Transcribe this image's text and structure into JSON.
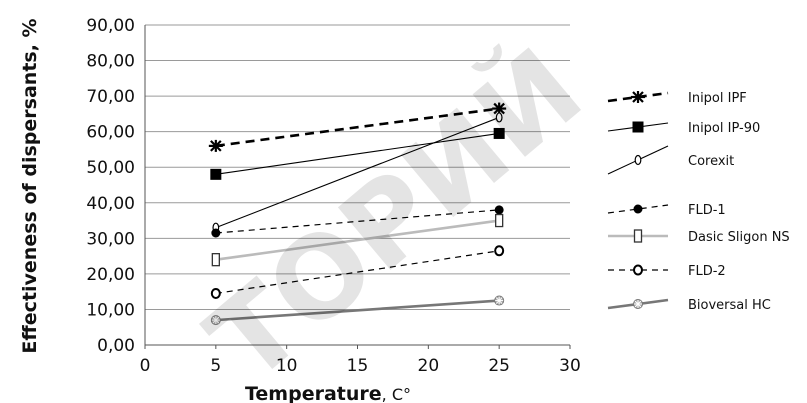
{
  "chart_data": {
    "type": "line",
    "xlabel": "Temperature",
    "xlabel_unit": ", C°",
    "ylabel": "Effectiveness of dispersants, %",
    "xlim": [
      0,
      30
    ],
    "ylim": [
      0,
      90
    ],
    "x_ticks": [
      "0",
      "5",
      "10",
      "15",
      "20",
      "25",
      "30"
    ],
    "y_ticks": [
      "0,00",
      "10,00",
      "20,00",
      "30,00",
      "40,00",
      "50,00",
      "60,00",
      "70,00",
      "80,00",
      "90,00"
    ],
    "grid": "horizontal",
    "legend_position": "right",
    "series": [
      {
        "name": "Inipol IPF",
        "x": [
          5,
          25
        ],
        "values": [
          56,
          66.5
        ],
        "color": "#000000",
        "line": "dashed-bold",
        "marker": "star"
      },
      {
        "name": "Inipol IP-90",
        "x": [
          5,
          25
        ],
        "values": [
          48,
          59.5
        ],
        "color": "#000000",
        "line": "solid",
        "marker": "filled-square"
      },
      {
        "name": "Corexit",
        "x": [
          5,
          25
        ],
        "values": [
          33,
          64
        ],
        "color": "#000000",
        "line": "solid",
        "marker": "small-circle"
      },
      {
        "name": "FLD-1",
        "x": [
          5,
          25
        ],
        "values": [
          31.5,
          38
        ],
        "color": "#000000",
        "line": "dashed",
        "marker": "filled-circle"
      },
      {
        "name": "Dasic Sligon NS",
        "x": [
          5,
          25
        ],
        "values": [
          24,
          35
        ],
        "color": "#bbbbbb",
        "line": "solid-thick",
        "marker": "open-rect"
      },
      {
        "name": "FLD-2",
        "x": [
          5,
          25
        ],
        "values": [
          14.5,
          26.5
        ],
        "color": "#000000",
        "line": "dashed",
        "marker": "open-circle"
      },
      {
        "name": "Bioversal HC",
        "x": [
          5,
          25
        ],
        "values": [
          7,
          12.5
        ],
        "color": "#777777",
        "line": "solid-thick",
        "marker": "asterisk"
      }
    ]
  },
  "watermark": {
    "text": "ТОРИЙ"
  }
}
